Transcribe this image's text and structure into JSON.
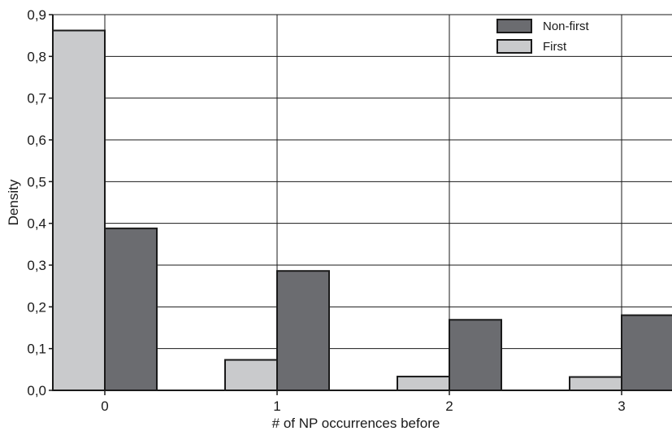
{
  "chart_data": {
    "type": "bar",
    "title": "",
    "xlabel": "# of NP occurrences before",
    "ylabel": "Density",
    "categories": [
      "0",
      "1",
      "2",
      "3"
    ],
    "series": [
      {
        "name": "First",
        "color": "#c9cacc",
        "values": [
          0.862,
          0.073,
          0.033,
          0.032
        ]
      },
      {
        "name": "Non-first",
        "color": "#6b6c70",
        "values": [
          0.388,
          0.286,
          0.169,
          0.18
        ]
      }
    ],
    "ylim": [
      0,
      0.9
    ],
    "yticks": [
      "0,0",
      "0,1",
      "0,2",
      "0,3",
      "0,4",
      "0,5",
      "0,6",
      "0,7",
      "0,8",
      "0,9"
    ],
    "grid": true,
    "legend": {
      "position": "top-right",
      "order": [
        "Non-first",
        "First"
      ]
    }
  }
}
